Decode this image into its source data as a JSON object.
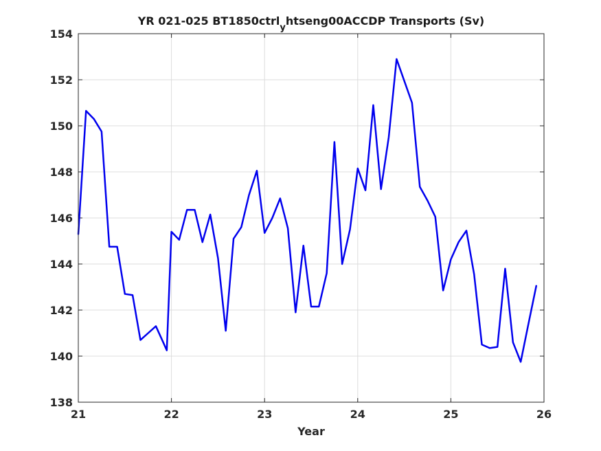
{
  "chart_data": {
    "type": "line",
    "title": "YR 021-025 BT1850ctrl",
    "title_subscript": "y",
    "title_rest": "htseng00ACCDP Transports (Sv)",
    "xlabel": "Year",
    "ylabel": "",
    "xlim": [
      21,
      26
    ],
    "ylim": [
      138,
      154
    ],
    "xticks": [
      21,
      22,
      23,
      24,
      25,
      26
    ],
    "yticks": [
      138,
      140,
      142,
      144,
      146,
      148,
      150,
      152,
      154
    ],
    "grid": true,
    "line_color": "#0000ee",
    "series": [
      {
        "x": [
          21.0,
          21.083,
          21.167,
          21.25,
          21.333,
          21.417,
          21.5,
          21.583,
          21.667,
          21.75,
          21.833,
          21.917,
          21.95,
          22.0,
          22.083,
          22.167,
          22.25,
          22.333,
          22.417,
          22.5,
          22.583,
          22.667,
          22.75,
          22.833,
          22.917,
          23.0,
          23.083,
          23.167,
          23.25,
          23.333,
          23.417,
          23.5,
          23.583,
          23.667,
          23.75,
          23.833,
          23.917,
          24.0,
          24.083,
          24.167,
          24.25,
          24.333,
          24.417,
          24.5,
          24.583,
          24.667,
          24.75,
          24.833,
          24.917,
          25.0,
          25.083,
          25.167,
          25.25,
          25.333,
          25.417,
          25.5,
          25.583,
          25.667,
          25.75,
          25.833,
          25.917
        ],
        "y": [
          145.3,
          150.65,
          150.3,
          149.75,
          144.75,
          144.75,
          142.7,
          142.65,
          140.7,
          141.0,
          141.3,
          140.55,
          140.25,
          145.4,
          145.05,
          146.35,
          146.35,
          144.95,
          146.15,
          144.25,
          141.1,
          145.1,
          145.6,
          147.0,
          148.05,
          145.35,
          146.0,
          146.85,
          145.55,
          141.9,
          144.8,
          142.15,
          142.15,
          143.6,
          149.3,
          144.0,
          145.5,
          148.15,
          147.2,
          150.9,
          147.25,
          149.5,
          152.9,
          151.95,
          151.0,
          147.35,
          146.75,
          146.05,
          142.85,
          144.2,
          144.95,
          145.45,
          143.55,
          140.5,
          140.35,
          140.4,
          143.8,
          140.6,
          139.75,
          141.4,
          143.05
        ]
      }
    ]
  }
}
